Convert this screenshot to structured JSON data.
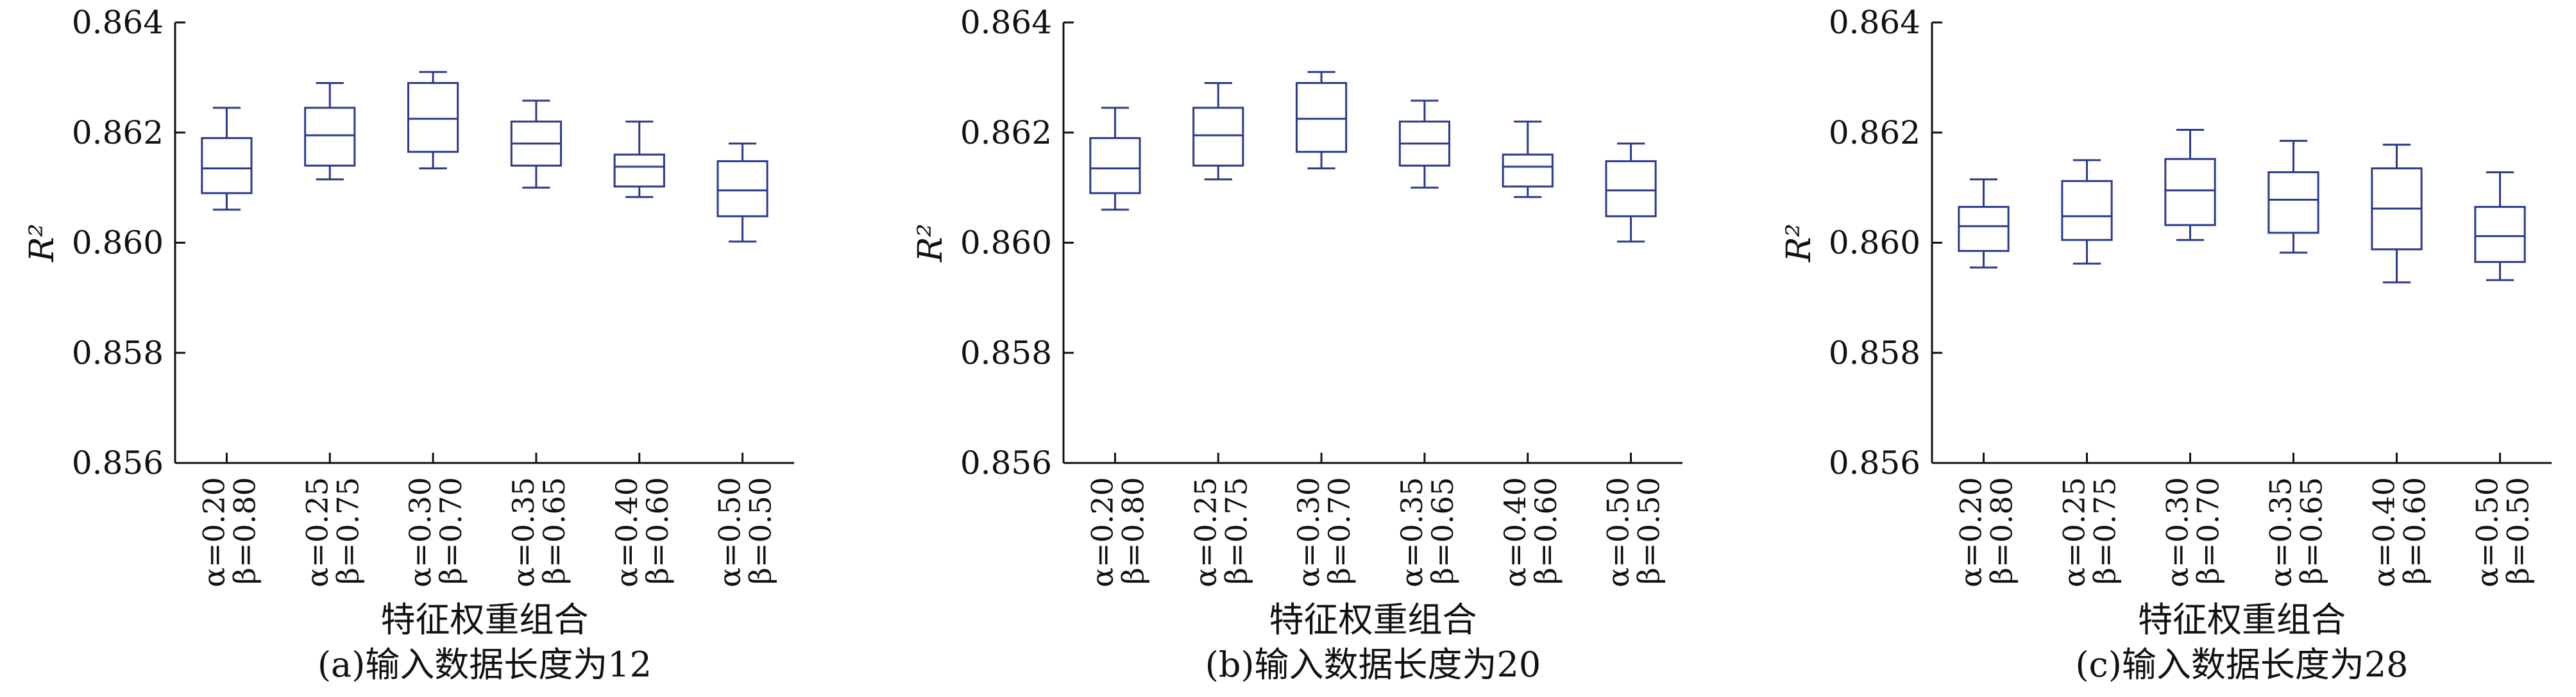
{
  "colors": {
    "box_stroke": "#2b3a8c",
    "axis": "#111111",
    "background": "#ffffff"
  },
  "chart_data": [
    {
      "type": "box",
      "caption": "(a)输入数据长度为12",
      "xlabel": "特征权重组合",
      "ylabel": "R²",
      "ylim": [
        0.856,
        0.864
      ],
      "yticks": [
        "0.856",
        "0.858",
        "0.860",
        "0.862",
        "0.864"
      ],
      "categories": [
        {
          "alpha": "α=0.20",
          "beta": "β=0.80"
        },
        {
          "alpha": "α=0.25",
          "beta": "β=0.75"
        },
        {
          "alpha": "α=0.30",
          "beta": "β=0.70"
        },
        {
          "alpha": "α=0.35",
          "beta": "β=0.65"
        },
        {
          "alpha": "α=0.40",
          "beta": "β=0.60"
        },
        {
          "alpha": "α=0.50",
          "beta": "β=0.50"
        }
      ],
      "boxes": [
        {
          "min": 0.8606,
          "q1": 0.8609,
          "median": 0.86135,
          "q3": 0.8619,
          "max": 0.86245
        },
        {
          "min": 0.86115,
          "q1": 0.8614,
          "median": 0.86195,
          "q3": 0.86245,
          "max": 0.8629
        },
        {
          "min": 0.86135,
          "q1": 0.86165,
          "median": 0.86225,
          "q3": 0.8629,
          "max": 0.8631
        },
        {
          "min": 0.861,
          "q1": 0.8614,
          "median": 0.8618,
          "q3": 0.8622,
          "max": 0.86258
        },
        {
          "min": 0.86083,
          "q1": 0.86102,
          "median": 0.86138,
          "q3": 0.8616,
          "max": 0.8622
        },
        {
          "min": 0.86002,
          "q1": 0.86048,
          "median": 0.86095,
          "q3": 0.86148,
          "max": 0.8618
        }
      ]
    },
    {
      "type": "box",
      "caption": "(b)输入数据长度为20",
      "xlabel": "特征权重组合",
      "ylabel": "R²",
      "ylim": [
        0.856,
        0.864
      ],
      "yticks": [
        "0.856",
        "0.858",
        "0.860",
        "0.862",
        "0.864"
      ],
      "categories": [
        {
          "alpha": "α=0.20",
          "beta": "β=0.80"
        },
        {
          "alpha": "α=0.25",
          "beta": "β=0.75"
        },
        {
          "alpha": "α=0.30",
          "beta": "β=0.70"
        },
        {
          "alpha": "α=0.35",
          "beta": "β=0.65"
        },
        {
          "alpha": "α=0.40",
          "beta": "β=0.60"
        },
        {
          "alpha": "α=0.50",
          "beta": "β=0.50"
        }
      ],
      "boxes": [
        {
          "min": 0.8606,
          "q1": 0.8609,
          "median": 0.86135,
          "q3": 0.8619,
          "max": 0.86245
        },
        {
          "min": 0.86115,
          "q1": 0.8614,
          "median": 0.86195,
          "q3": 0.86245,
          "max": 0.8629
        },
        {
          "min": 0.86135,
          "q1": 0.86165,
          "median": 0.86225,
          "q3": 0.8629,
          "max": 0.8631
        },
        {
          "min": 0.861,
          "q1": 0.8614,
          "median": 0.8618,
          "q3": 0.8622,
          "max": 0.86258
        },
        {
          "min": 0.86083,
          "q1": 0.86102,
          "median": 0.86138,
          "q3": 0.8616,
          "max": 0.8622
        },
        {
          "min": 0.86002,
          "q1": 0.86048,
          "median": 0.86095,
          "q3": 0.86148,
          "max": 0.8618
        }
      ]
    },
    {
      "type": "box",
      "caption": "(c)输入数据长度为28",
      "xlabel": "特征权重组合",
      "ylabel": "R²",
      "ylim": [
        0.856,
        0.864
      ],
      "yticks": [
        "0.856",
        "0.858",
        "0.860",
        "0.862",
        "0.864"
      ],
      "categories": [
        {
          "alpha": "α=0.20",
          "beta": "β=0.80"
        },
        {
          "alpha": "α=0.25",
          "beta": "β=0.75"
        },
        {
          "alpha": "α=0.30",
          "beta": "β=0.70"
        },
        {
          "alpha": "α=0.35",
          "beta": "β=0.65"
        },
        {
          "alpha": "α=0.40",
          "beta": "β=0.60"
        },
        {
          "alpha": "α=0.50",
          "beta": "β=0.50"
        }
      ],
      "boxes": [
        {
          "min": 0.85955,
          "q1": 0.85985,
          "median": 0.8603,
          "q3": 0.86065,
          "max": 0.86115
        },
        {
          "min": 0.85962,
          "q1": 0.86005,
          "median": 0.86048,
          "q3": 0.86112,
          "max": 0.8615
        },
        {
          "min": 0.86005,
          "q1": 0.86032,
          "median": 0.86095,
          "q3": 0.86152,
          "max": 0.86205
        },
        {
          "min": 0.85982,
          "q1": 0.86018,
          "median": 0.86078,
          "q3": 0.86128,
          "max": 0.86185
        },
        {
          "min": 0.85928,
          "q1": 0.85988,
          "median": 0.86062,
          "q3": 0.86135,
          "max": 0.86178
        },
        {
          "min": 0.85932,
          "q1": 0.85965,
          "median": 0.86012,
          "q3": 0.86065,
          "max": 0.86128
        }
      ]
    }
  ]
}
